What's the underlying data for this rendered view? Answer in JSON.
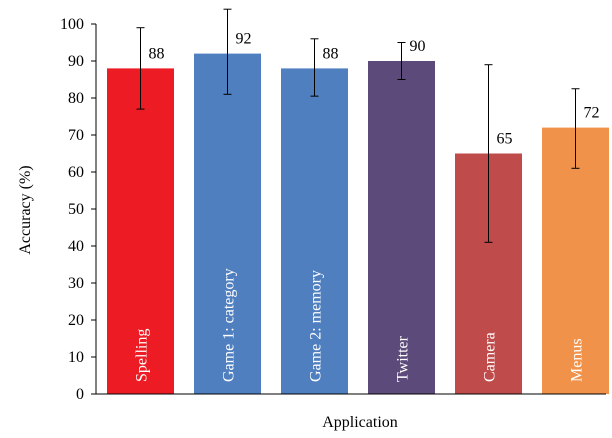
{
  "chart_data": {
    "type": "bar",
    "title": "",
    "xlabel": "Application",
    "ylabel": "Accuracy (%)",
    "ylim": [
      0,
      100
    ],
    "yticks": [
      0,
      10,
      20,
      30,
      40,
      50,
      60,
      70,
      80,
      90,
      100
    ],
    "grid": false,
    "legend": "none",
    "categories": [
      "Spelling",
      "Game 1: category",
      "Game 2: memory",
      "Twitter",
      "Camera",
      "Menus"
    ],
    "values": [
      88,
      92,
      88,
      90,
      65,
      72
    ],
    "data_labels": [
      "88",
      "92",
      "88",
      "90",
      "65",
      "72"
    ],
    "error_low": [
      77,
      81,
      80.5,
      85,
      41,
      61
    ],
    "error_high": [
      99,
      104,
      96,
      95,
      89,
      82.5
    ],
    "colors": [
      "#ed1c24",
      "#4f7fbf",
      "#4f7fbf",
      "#5b4a7a",
      "#bf4b4b",
      "#f0924a"
    ]
  }
}
